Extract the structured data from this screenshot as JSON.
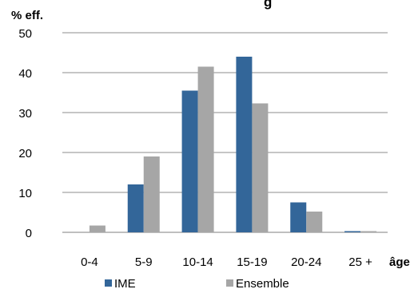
{
  "chart_data": {
    "type": "bar",
    "title": "g",
    "ylabel": "% eff.",
    "xlabel": "âge",
    "ylim": [
      0,
      50
    ],
    "yticks": [
      0,
      10,
      20,
      30,
      40,
      50
    ],
    "grid": true,
    "legend_position": "bottom",
    "categories": [
      "0-4",
      "5-9",
      "10-14",
      "15-19",
      "20-24",
      "25 +"
    ],
    "series": [
      {
        "name": "IME",
        "color": "#336699",
        "values": [
          0,
          12,
          35.5,
          44,
          7.5,
          0.3
        ]
      },
      {
        "name": "Ensemble",
        "color": "#a6a6a6",
        "values": [
          1.7,
          19,
          41.5,
          32.3,
          5.2,
          0.3
        ]
      }
    ]
  }
}
